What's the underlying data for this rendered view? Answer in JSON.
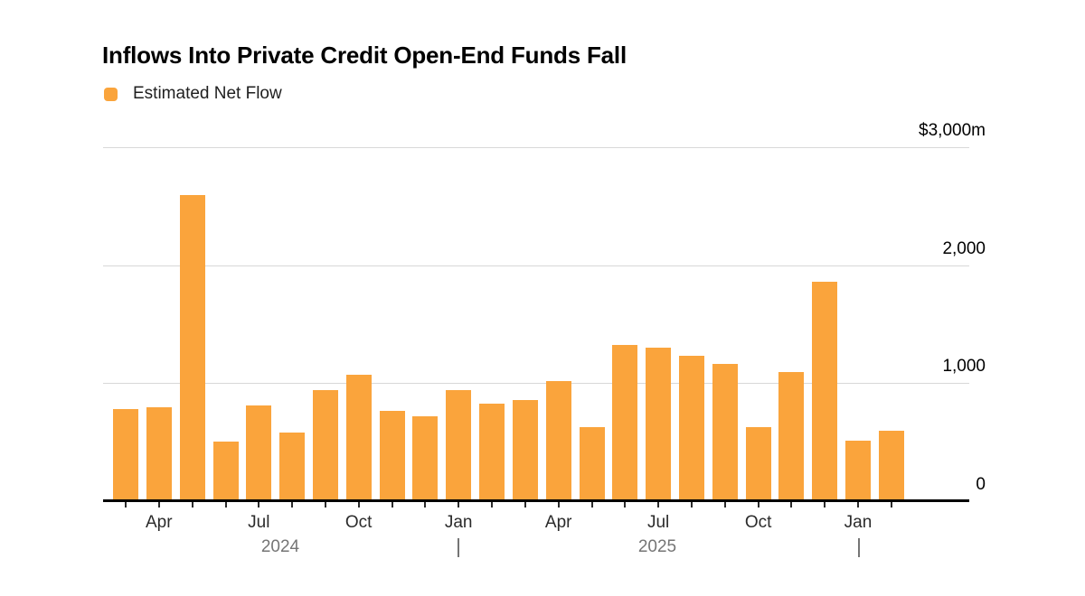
{
  "header": {
    "title": "Inflows Into Private Credit Open-End Funds Fall"
  },
  "legend": {
    "label": "Estimated Net Flow",
    "swatch_color": "#faa43c"
  },
  "chart_data": {
    "type": "bar",
    "title": "Inflows Into Private Credit Open-End Funds Fall",
    "series_name": "Estimated Net Flow",
    "unit": "millions of dollars",
    "categories": [
      "Mar 2024",
      "Apr 2024",
      "May 2024",
      "Jun 2024",
      "Jul 2024",
      "Aug 2024",
      "Sep 2024",
      "Oct 2024",
      "Nov 2024",
      "Dec 2024",
      "Jan 2025",
      "Feb 2025",
      "Mar 2025",
      "Apr 2025",
      "May 2025",
      "Jun 2025",
      "Jul 2025",
      "Aug 2025",
      "Sep 2025",
      "Oct 2025",
      "Nov 2025",
      "Dec 2025",
      "Jan 2026",
      "Feb 2026"
    ],
    "values": [
      780,
      795,
      2600,
      505,
      810,
      585,
      945,
      1075,
      765,
      720,
      940,
      830,
      855,
      1020,
      625,
      1325,
      1300,
      1230,
      1165,
      630,
      1095,
      1860,
      510,
      595
    ],
    "ylim": [
      0,
      3000
    ],
    "y_ticks": [
      {
        "value": 3000,
        "label": "$3,000m"
      },
      {
        "value": 2000,
        "label": "2,000"
      },
      {
        "value": 1000,
        "label": "1,000"
      },
      {
        "value": 0,
        "label": "0"
      }
    ],
    "x_tick_labels": [
      {
        "index": 1,
        "label": "Apr"
      },
      {
        "index": 4,
        "label": "Jul"
      },
      {
        "index": 7,
        "label": "Oct"
      },
      {
        "index": 10,
        "label": "Jan"
      },
      {
        "index": 13,
        "label": "Apr"
      },
      {
        "index": 16,
        "label": "Jul"
      },
      {
        "index": 19,
        "label": "Oct"
      },
      {
        "index": 22,
        "label": "Jan"
      }
    ],
    "year_labels": [
      {
        "label": "2024",
        "x": 310
      },
      {
        "label": "2025",
        "x": 727
      }
    ],
    "year_divider_x": [
      507,
      950
    ],
    "bar_color": "#faa43c",
    "grid": true,
    "gridline_color": "#d8d8d8",
    "axis_color": "#000000",
    "legend_position": "top-left"
  }
}
